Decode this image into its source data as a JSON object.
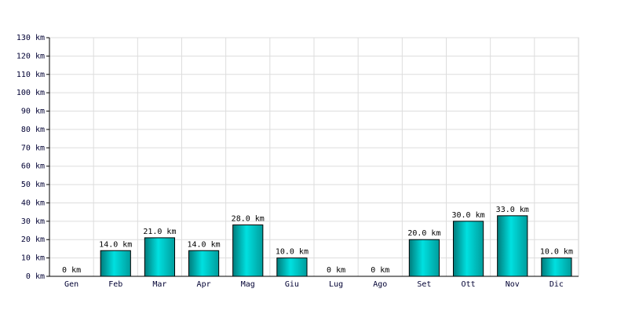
{
  "chart_data": {
    "type": "bar",
    "categories": [
      "Gen",
      "Feb",
      "Mar",
      "Apr",
      "Mag",
      "Giu",
      "Lug",
      "Ago",
      "Set",
      "Ott",
      "Nov",
      "Dic"
    ],
    "values": [
      0,
      14,
      21,
      14,
      28,
      10,
      0,
      0,
      20,
      30,
      33,
      10
    ],
    "value_labels": [
      "0 km",
      "14.0 km",
      "21.0 km",
      "14.0 km",
      "28.0 km",
      "10.0 km",
      "0 km",
      "0 km",
      "20.0 km",
      "30.0 km",
      "33.0 km",
      "10.0 km"
    ],
    "color": "#00e0e0",
    "ylim": [
      0,
      130
    ],
    "yticks": [
      {
        "value": 0,
        "label": "0 km"
      },
      {
        "value": 10,
        "label": "10 km"
      },
      {
        "value": 20,
        "label": "20 km"
      },
      {
        "value": 30,
        "label": "30 km"
      },
      {
        "value": 40,
        "label": "40 km"
      },
      {
        "value": 50,
        "label": "50 km"
      },
      {
        "value": 60,
        "label": "60 km"
      },
      {
        "value": 70,
        "label": "70 km"
      },
      {
        "value": 80,
        "label": "80 km"
      },
      {
        "value": 90,
        "label": "90 km"
      },
      {
        "value": 100,
        "label": "100 km"
      },
      {
        "value": 110,
        "label": "110 km"
      },
      {
        "value": 120,
        "label": "120 km"
      },
      {
        "value": 130,
        "label": "130 km"
      }
    ],
    "grid": true
  }
}
